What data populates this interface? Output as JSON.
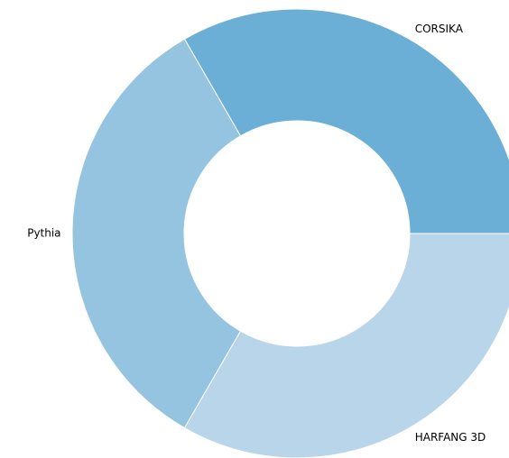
{
  "chart_data": {
    "type": "donut",
    "categories": [
      "CORSIKA",
      "Pythia",
      "HARFANG 3D"
    ],
    "values": [
      33.3,
      33.3,
      33.3
    ],
    "colors": [
      "#6baed6",
      "#94c4df",
      "#b9d5ea"
    ]
  }
}
